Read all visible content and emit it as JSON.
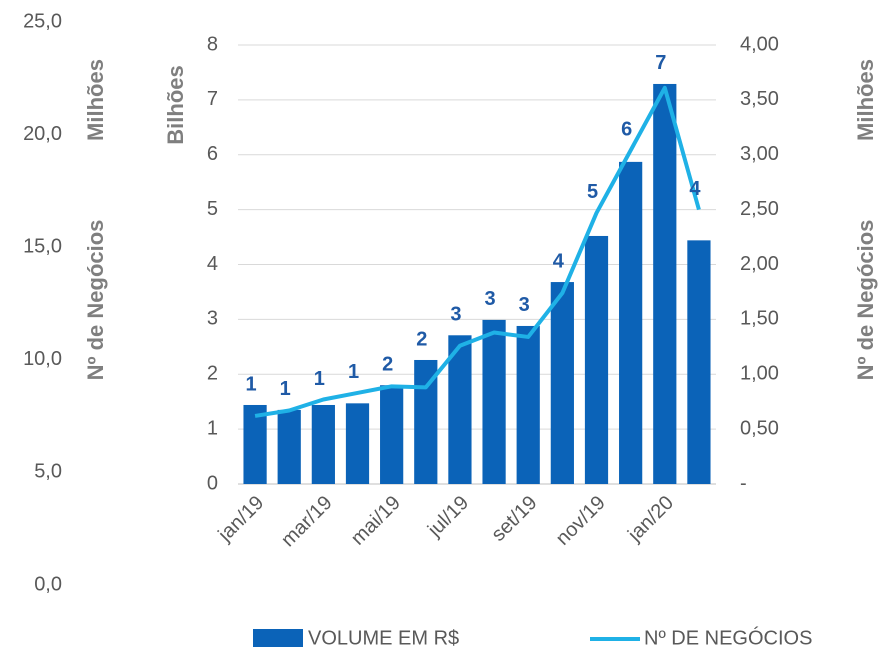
{
  "chart_data": {
    "type": "bar_line",
    "categories": [
      "jan/19",
      null,
      "mar/19",
      null,
      "mai/19",
      null,
      "jul/19",
      null,
      "set/19",
      null,
      "nov/19",
      null,
      "jan/20",
      null
    ],
    "series": [
      {
        "name": "VOLUME EM R$",
        "type": "bar",
        "color": "#0b63b8",
        "values": [
          1.44,
          1.35,
          1.44,
          1.47,
          1.8,
          2.26,
          2.71,
          2.99,
          2.88,
          3.68,
          4.52,
          5.87,
          7.29,
          4.44
        ],
        "value_labels": [
          "1",
          "1",
          "1",
          "1",
          "2",
          "2",
          "3",
          "3",
          "3",
          "4",
          "5",
          "6",
          "7",
          "4"
        ]
      },
      {
        "name": "Nº DE NEGÓCIOS",
        "type": "line",
        "axis": "y2",
        "color": "#1fb1e6",
        "values": [
          0.62,
          0.67,
          0.77,
          0.83,
          0.89,
          0.88,
          1.26,
          1.38,
          1.34,
          1.74,
          2.47,
          3.04,
          3.61,
          2.5
        ]
      }
    ],
    "y_unit": "Bilhões",
    "ylim": [
      0,
      8
    ],
    "yticks": [
      0,
      1,
      2,
      3,
      4,
      5,
      6,
      7,
      8
    ],
    "y2_label": "Nº de Negócios",
    "y2_unit": "Milhões",
    "y2lim": [
      0,
      4
    ],
    "y2ticks": [
      {
        "value": 0,
        "label": "-"
      },
      {
        "value": 0.5,
        "label": "0,50"
      },
      {
        "value": 1,
        "label": "1,00"
      },
      {
        "value": 1.5,
        "label": "1,50"
      },
      {
        "value": 2,
        "label": "2,00"
      },
      {
        "value": 2.5,
        "label": "2,50"
      },
      {
        "value": 3,
        "label": "3,00"
      },
      {
        "value": 3.5,
        "label": "3,50"
      },
      {
        "value": 4,
        "label": "4,00"
      }
    ],
    "y3_label": "Nº de Negócios",
    "y3_unit": "Milhões",
    "y3lim": [
      0,
      25
    ],
    "y3ticks": [
      {
        "value": 0,
        "label": "0,0"
      },
      {
        "value": 5,
        "label": "5,0"
      },
      {
        "value": 10,
        "label": "10,0"
      },
      {
        "value": 15,
        "label": "15,0"
      },
      {
        "value": 20,
        "label": "20,0"
      },
      {
        "value": 25,
        "label": "25,0"
      }
    ],
    "grid": true,
    "legend": "bottom"
  }
}
